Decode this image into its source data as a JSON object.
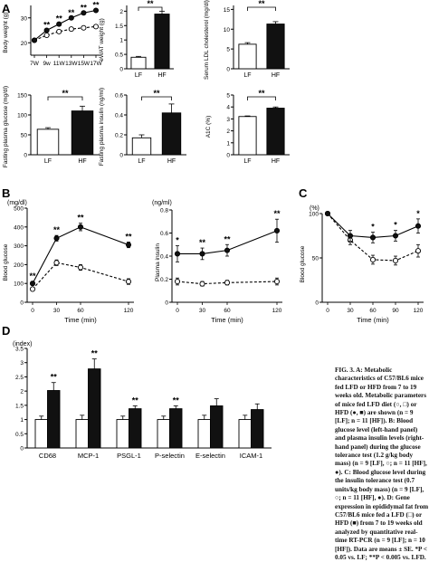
{
  "panel_letters": {
    "a": "A",
    "b": "B",
    "c": "C",
    "d": "D"
  },
  "caption": "FIG. 3. A: Metabolic characteristics of C57/BL6 mice fed LFD or HFD from 7 to 19 weeks old. Metabolic parameters of mice fed LFD diet (○, □) or HFD (●, ■) are shown (n = 9 [LF]; n = 11 [HF]). B: Blood glucose level (left-hand panel) and plasma insulin levels (right-hand panel) during the glucose tolerance test (1.2 g/kg body mass) (n = 9 [LF], ○; n = 11 [HF], ●). C: Blood glucose level during the insulin tolerance test (0.7 units/kg body mass) (n = 9 [LF], ○; n = 11 [HF], ●). D: Gene expression in epididymal fat from C57/BL6 mice fed a LFD (□) or HFD (■) from 7 to 19 weeks old analyzed by quantitative real-time RT-PCR (n = 9 [LF]; n = 10 [HF]). Data are means ± SE. *P < 0.05 vs. LF; **P < 0.005 vs. LFD.",
  "colors": {
    "lf_fill": "#ffffff",
    "hf_fill": "#111111",
    "axis": "#000000"
  },
  "chart_data": [
    {
      "id": "A1",
      "type": "line",
      "ylabel": "Body weight (g)",
      "x": [
        "7W",
        "9w",
        "11W",
        "13W",
        "15W",
        "17W"
      ],
      "series": [
        {
          "name": "LF",
          "marker": "open-circle",
          "line": "dashed",
          "values": [
            21,
            23,
            24.5,
            25.5,
            26,
            26.5
          ]
        },
        {
          "name": "HF",
          "marker": "filled-circle",
          "line": "solid",
          "values": [
            21,
            25,
            27.5,
            30,
            32,
            33
          ]
        }
      ],
      "ylim": [
        15,
        35
      ],
      "yticks": [
        "20",
        "30"
      ],
      "annotations": [
        "**",
        "**",
        "**",
        "**",
        "**"
      ]
    },
    {
      "id": "A2",
      "type": "bar",
      "ylabel": "eWAT weight (g)",
      "categories": [
        "LF",
        "HF"
      ],
      "values": [
        0.4,
        1.9
      ],
      "errors": [
        0.03,
        0.1
      ],
      "ylim": [
        0,
        2.2
      ],
      "yticks": [
        "0",
        "0.5",
        "1",
        "1.5",
        "2"
      ],
      "significance": "**"
    },
    {
      "id": "A3",
      "type": "bar",
      "ylabel": "Serum LDL cholesterol (mg/dl)",
      "categories": [
        "LF",
        "HF"
      ],
      "values": [
        6.2,
        11.3
      ],
      "errors": [
        0.4,
        0.6
      ],
      "ylim": [
        0,
        16
      ],
      "yticks": [
        "0",
        "5",
        "10",
        "15"
      ],
      "significance": "**"
    },
    {
      "id": "A4",
      "type": "bar",
      "ylabel": "Fasting plasma glucose (mg/dl)",
      "categories": [
        "LF",
        "HF"
      ],
      "values": [
        64,
        110
      ],
      "errors": [
        4,
        12
      ],
      "ylim": [
        0,
        150
      ],
      "yticks": [
        "0",
        "50",
        "100",
        "150"
      ],
      "significance": "**"
    },
    {
      "id": "A5",
      "type": "bar",
      "ylabel": "Fasting plasma insulin (ng/ml)",
      "categories": [
        "LF",
        "HF"
      ],
      "values": [
        0.17,
        0.42
      ],
      "errors": [
        0.03,
        0.09
      ],
      "ylim": [
        0,
        0.6
      ],
      "yticks": [
        "0",
        "0.2",
        "0.4",
        "0.6"
      ],
      "significance": "**"
    },
    {
      "id": "A6",
      "type": "bar",
      "ylabel": "A1C (%)",
      "categories": [
        "LF",
        "HF"
      ],
      "values": [
        3.2,
        3.9
      ],
      "errors": [
        0.05,
        0.1
      ],
      "ylim": [
        0,
        5
      ],
      "yticks": [
        "0",
        "1",
        "2",
        "3",
        "4",
        "5"
      ],
      "significance": "**"
    },
    {
      "id": "B1",
      "type": "line",
      "ylabel": "Blood glucose",
      "unit": "(mg/dl)",
      "xlabel": "Time (min)",
      "x": [
        0,
        30,
        60,
        120
      ],
      "series": [
        {
          "name": "LF",
          "marker": "open-circle",
          "line": "dashed",
          "values": [
            70,
            210,
            185,
            110
          ],
          "errors": [
            10,
            15,
            15,
            15
          ]
        },
        {
          "name": "HF",
          "marker": "filled-circle",
          "line": "solid",
          "values": [
            100,
            340,
            400,
            305
          ],
          "errors": [
            10,
            15,
            20,
            15
          ]
        }
      ],
      "ylim": [
        0,
        500
      ],
      "yticks": [
        "0",
        "100",
        "200",
        "300",
        "400",
        "500"
      ],
      "annotations": [
        "**",
        "**",
        "**",
        "**"
      ]
    },
    {
      "id": "B2",
      "type": "line",
      "ylabel": "Plasma insulin",
      "unit": "(ng/ml)",
      "xlabel": "Time (min)",
      "x": [
        0,
        30,
        60,
        120
      ],
      "series": [
        {
          "name": "LF",
          "marker": "open-circle",
          "line": "dashed",
          "values": [
            0.18,
            0.16,
            0.17,
            0.18
          ],
          "errors": [
            0.03,
            0.02,
            0.02,
            0.03
          ]
        },
        {
          "name": "HF",
          "marker": "filled-circle",
          "line": "solid",
          "values": [
            0.42,
            0.42,
            0.45,
            0.62
          ],
          "errors": [
            0.07,
            0.05,
            0.05,
            0.1
          ]
        }
      ],
      "ylim": [
        0,
        0.8
      ],
      "yticks": [
        "0",
        "0.2",
        "0.4",
        "0.6",
        "0.8"
      ],
      "annotations": [
        "*",
        "**",
        "**",
        "**"
      ]
    },
    {
      "id": "C",
      "type": "line",
      "ylabel": "Blood glucose",
      "unit": "(%)",
      "xlabel": "Time (min)",
      "x": [
        0,
        30,
        60,
        90,
        120
      ],
      "series": [
        {
          "name": "LF",
          "marker": "open-circle",
          "line": "dashed",
          "values": [
            100,
            70,
            48,
            47,
            58
          ],
          "errors": [
            2,
            5,
            5,
            5,
            7
          ]
        },
        {
          "name": "HF",
          "marker": "filled-circle",
          "line": "solid",
          "values": [
            100,
            75,
            73,
            75,
            86
          ],
          "errors": [
            2,
            6,
            6,
            6,
            8
          ]
        }
      ],
      "ylim": [
        0,
        100
      ],
      "yticks": [
        "0",
        "50",
        "100"
      ],
      "annotations": [
        "*",
        "*",
        "*"
      ]
    },
    {
      "id": "D",
      "type": "bar",
      "unit": "(index)",
      "categories": [
        "CD68",
        "MCP-1",
        "PSGL-1",
        "P-selectin",
        "E-selectin",
        "ICAM-1"
      ],
      "series": [
        {
          "name": "LF",
          "values": [
            1,
            1,
            1,
            1,
            1,
            1
          ],
          "errors": [
            0.12,
            0.15,
            0.12,
            0.12,
            0.15,
            0.15
          ]
        },
        {
          "name": "HF",
          "values": [
            2.02,
            2.78,
            1.38,
            1.38,
            1.48,
            1.35
          ],
          "errors": [
            0.28,
            0.35,
            0.1,
            0.1,
            0.25,
            0.2
          ]
        }
      ],
      "ylim": [
        0,
        3.5
      ],
      "yticks": [
        "0",
        "0.5",
        "1",
        "1.5",
        "2",
        "2.5",
        "3",
        "3.5"
      ],
      "annotations": [
        "**",
        "**",
        "**",
        "**",
        "",
        ""
      ]
    }
  ]
}
